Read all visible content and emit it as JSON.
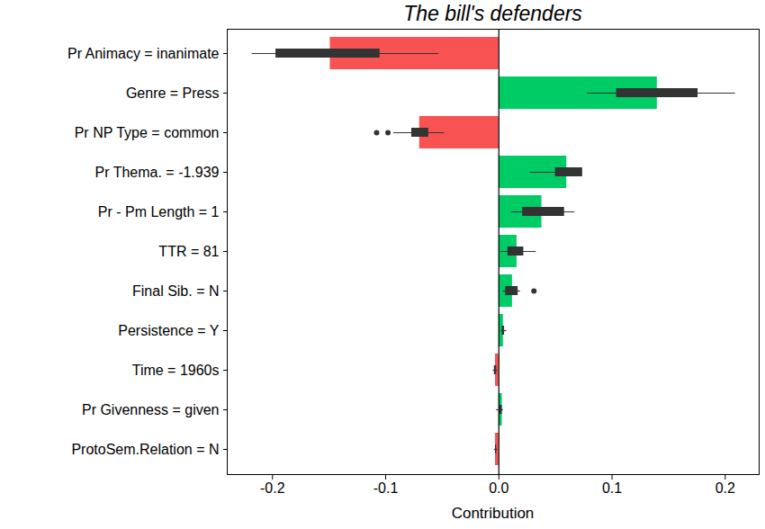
{
  "chart_data": {
    "type": "bar",
    "orientation": "horizontal",
    "title": "The bill's defenders",
    "x_label": "Contribution",
    "categories": [
      "Pr Animacy = inanimate",
      "Genre = Press",
      "Pr NP Type = common",
      "Pr Thema. = -1.939",
      "Pr - Pm Length = 1",
      "TTR = 81",
      "Final Sib. = N",
      "Persistence = Y",
      "Time = 1960s",
      "Pr Givenness = given",
      "ProtoSem.Relation = N"
    ],
    "values": [
      -0.149,
      0.14,
      -0.07,
      0.06,
      0.038,
      0.016,
      0.012,
      0.004,
      -0.003,
      0.003,
      -0.003
    ],
    "colors": [
      "#f85252",
      "#00cc66",
      "#f85252",
      "#00cc66",
      "#00cc66",
      "#00cc66",
      "#00cc66",
      "#00cc66",
      "#f85252",
      "#00cc66",
      "#f85252"
    ],
    "whisker_low": [
      -0.218,
      0.078,
      -0.093,
      0.028,
      0.011,
      0.002,
      0.004,
      0.002,
      -0.005,
      -0.002,
      -0.004
    ],
    "box_low": [
      -0.197,
      0.104,
      -0.077,
      0.05,
      0.021,
      0.008,
      0.006,
      0.003,
      -0.004,
      0.001,
      -0.003
    ],
    "box_high": [
      -0.105,
      0.176,
      -0.062,
      0.074,
      0.058,
      0.022,
      0.017,
      0.005,
      -0.002,
      0.003,
      -0.002
    ],
    "whisker_high": [
      -0.053,
      0.209,
      -0.048,
      0.074,
      0.067,
      0.033,
      0.019,
      0.007,
      -0.001,
      0.004,
      -0.001
    ],
    "outliers": [
      [],
      [],
      [
        -0.108,
        -0.098
      ],
      [],
      [],
      [],
      [
        0.031
      ],
      [],
      [],
      [],
      []
    ],
    "xlim": [
      -0.24,
      0.23
    ],
    "xticks": [
      -0.2,
      -0.1,
      {
        "value": 0,
        "label": "0.0"
      },
      0.1,
      0.2
    ],
    "grid": false
  }
}
